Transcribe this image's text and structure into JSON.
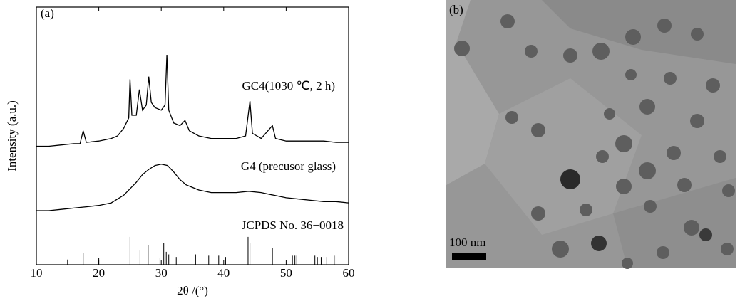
{
  "chart_data": {
    "type": "line",
    "panel_label": "(a)",
    "xlabel": "2θ /(°)",
    "ylabel": "Intensity (a.u.)",
    "xlim": [
      10,
      60
    ],
    "xticks": [
      10,
      20,
      30,
      40,
      50,
      60
    ],
    "ylim": [
      0,
      100
    ],
    "series": [
      {
        "name": "GC4(1030 ℃, 2 h)",
        "color": "#000000",
        "style": "line",
        "x": [
          10,
          12,
          14,
          16,
          17,
          17.5,
          18,
          20,
          22,
          23,
          24,
          24.8,
          25,
          25.3,
          26,
          26.5,
          27,
          27.6,
          28,
          28.4,
          29,
          30,
          30.6,
          30.9,
          31.2,
          32,
          33,
          33.8,
          34.5,
          36,
          38,
          40,
          42,
          43.5,
          44.2,
          44.6,
          46,
          47.8,
          48.3,
          50,
          52,
          54,
          56,
          58,
          60
        ],
        "values": [
          46,
          46,
          46.5,
          47,
          47,
          52,
          47.5,
          48,
          49,
          50,
          53,
          57,
          72,
          58,
          58,
          68,
          60,
          62,
          73,
          63,
          61,
          60,
          62,
          81.5,
          60,
          55,
          54,
          56,
          52,
          50,
          49,
          49,
          49,
          50,
          63.5,
          51,
          49,
          54,
          49,
          48,
          48,
          48,
          48,
          47.5,
          47.5
        ]
      },
      {
        "name": "G4 (precusor glass)",
        "color": "#000000",
        "style": "line",
        "x": [
          10,
          12,
          14,
          16,
          18,
          20,
          22,
          24,
          26,
          27,
          28,
          29,
          30,
          31,
          32,
          33,
          34,
          35,
          36,
          38,
          40,
          42,
          44,
          46,
          48,
          50,
          52,
          54,
          56,
          58,
          60
        ],
        "values": [
          21,
          21,
          21.5,
          22,
          22.5,
          23,
          24,
          27,
          32,
          35,
          37,
          38.5,
          39,
          38.5,
          36,
          33,
          31,
          30,
          29,
          28,
          28,
          28,
          28.5,
          28,
          27,
          26,
          25.5,
          25,
          24.5,
          24.5,
          24
        ]
      },
      {
        "name": "JCPDS No. 36−0018",
        "color": "#000000",
        "style": "stick",
        "x": [
          15,
          17.5,
          20,
          25,
          26.6,
          27.9,
          29.8,
          30.4,
          30.8,
          31.2,
          32.4,
          35.5,
          37.6,
          39.2,
          40.3,
          43.9,
          44.2,
          47.8,
          51,
          51.4,
          51.7,
          54.6,
          55,
          55.6,
          56.5,
          57.7,
          58
        ],
        "values": [
          2,
          4.5,
          2.5,
          10.8,
          5.5,
          7.5,
          2.5,
          8.5,
          5,
          4,
          3,
          4,
          3.5,
          3.5,
          3,
          10.8,
          8.5,
          6.5,
          3.5,
          3.5,
          3.5,
          3.5,
          3,
          3,
          3,
          3.5,
          3.5
        ]
      }
    ]
  },
  "image": {
    "panel_label": "(b)",
    "scale_bar": "100 nm"
  }
}
